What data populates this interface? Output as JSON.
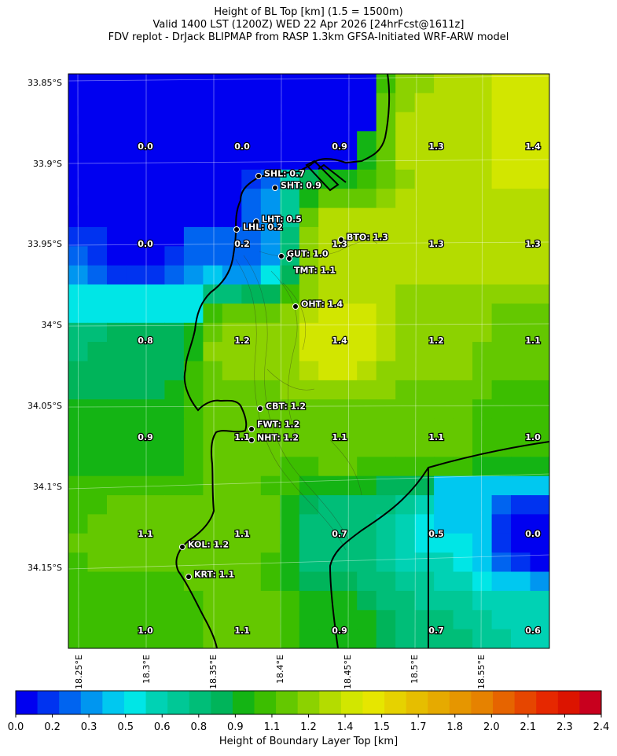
{
  "title": {
    "line1": "Height of BL Top [km] (1.5 = 1500m)",
    "line2": "Valid 1400 LST (1200Z) WED 22 Apr 2026 [24hrFcst@1611z]",
    "line3": "FDV replot - DrJack BLIPMAP from RASP 1.3km GFSA-Initiated WRF-ARW model"
  },
  "map": {
    "lat_ticks": [
      "33.85°S",
      "33.9°S",
      "33.95°S",
      "34°S",
      "34.05°S",
      "34.1°S",
      "34.15°S"
    ],
    "lon_ticks": [
      "18.25°E",
      "18.3°E",
      "18.35°E",
      "18.4°E",
      "18.45°E",
      "18.5°E",
      "18.55°E"
    ],
    "grid_values": [
      [
        "0.0",
        "0.0",
        "0.9",
        "1.3",
        "1.4"
      ],
      [
        "0.0",
        "0.2",
        "1.3",
        "1.3",
        "1.3"
      ],
      [
        "0.8",
        "1.2",
        "1.4",
        "1.2",
        "1.1"
      ],
      [
        "0.9",
        "1.1",
        "1.1",
        "1.1",
        "1.0"
      ],
      [
        "1.1",
        "1.1",
        "0.7",
        "0.5",
        "0.0"
      ],
      [
        "1.0",
        "1.1",
        "0.9",
        "0.7",
        "0.6"
      ]
    ],
    "stations": [
      {
        "code": "SHL",
        "value": "0.7"
      },
      {
        "code": "SHT",
        "value": "0.9"
      },
      {
        "code": "LHT",
        "value": "0.5"
      },
      {
        "code": "LHL",
        "value": "0.2"
      },
      {
        "code": "BTO",
        "value": "1.3"
      },
      {
        "code": "GUT",
        "value": "1.0"
      },
      {
        "code": "TMT",
        "value": "1.1"
      },
      {
        "code": "OHT",
        "value": "1.4"
      },
      {
        "code": "CBT",
        "value": "1.2"
      },
      {
        "code": "FWT",
        "value": "1.2"
      },
      {
        "code": "NHT",
        "value": "1.2"
      },
      {
        "code": "KOL",
        "value": "1.2"
      },
      {
        "code": "KRT",
        "value": "1.1"
      }
    ]
  },
  "colorbar": {
    "label": "Height of Boundary Layer Top [km]",
    "ticks": [
      "0.0",
      "0.2",
      "0.3",
      "0.5",
      "0.6",
      "0.8",
      "0.9",
      "1.1",
      "1.2",
      "1.4",
      "1.5",
      "1.7",
      "1.8",
      "2.0",
      "2.1",
      "2.3",
      "2.4"
    ],
    "colors": [
      "#0000f0",
      "#0033f0",
      "#0064f0",
      "#0096f0",
      "#00c8f0",
      "#00e6e6",
      "#00d2b4",
      "#00c896",
      "#00be78",
      "#00b45a",
      "#14b414",
      "#3cbe00",
      "#64c800",
      "#8cd200",
      "#b4dc00",
      "#d2e600",
      "#e6e600",
      "#e6d200",
      "#e6be00",
      "#e6aa00",
      "#e69600",
      "#e68200",
      "#e66400",
      "#e64600",
      "#e62800",
      "#dc1400",
      "#c8001e"
    ]
  }
}
